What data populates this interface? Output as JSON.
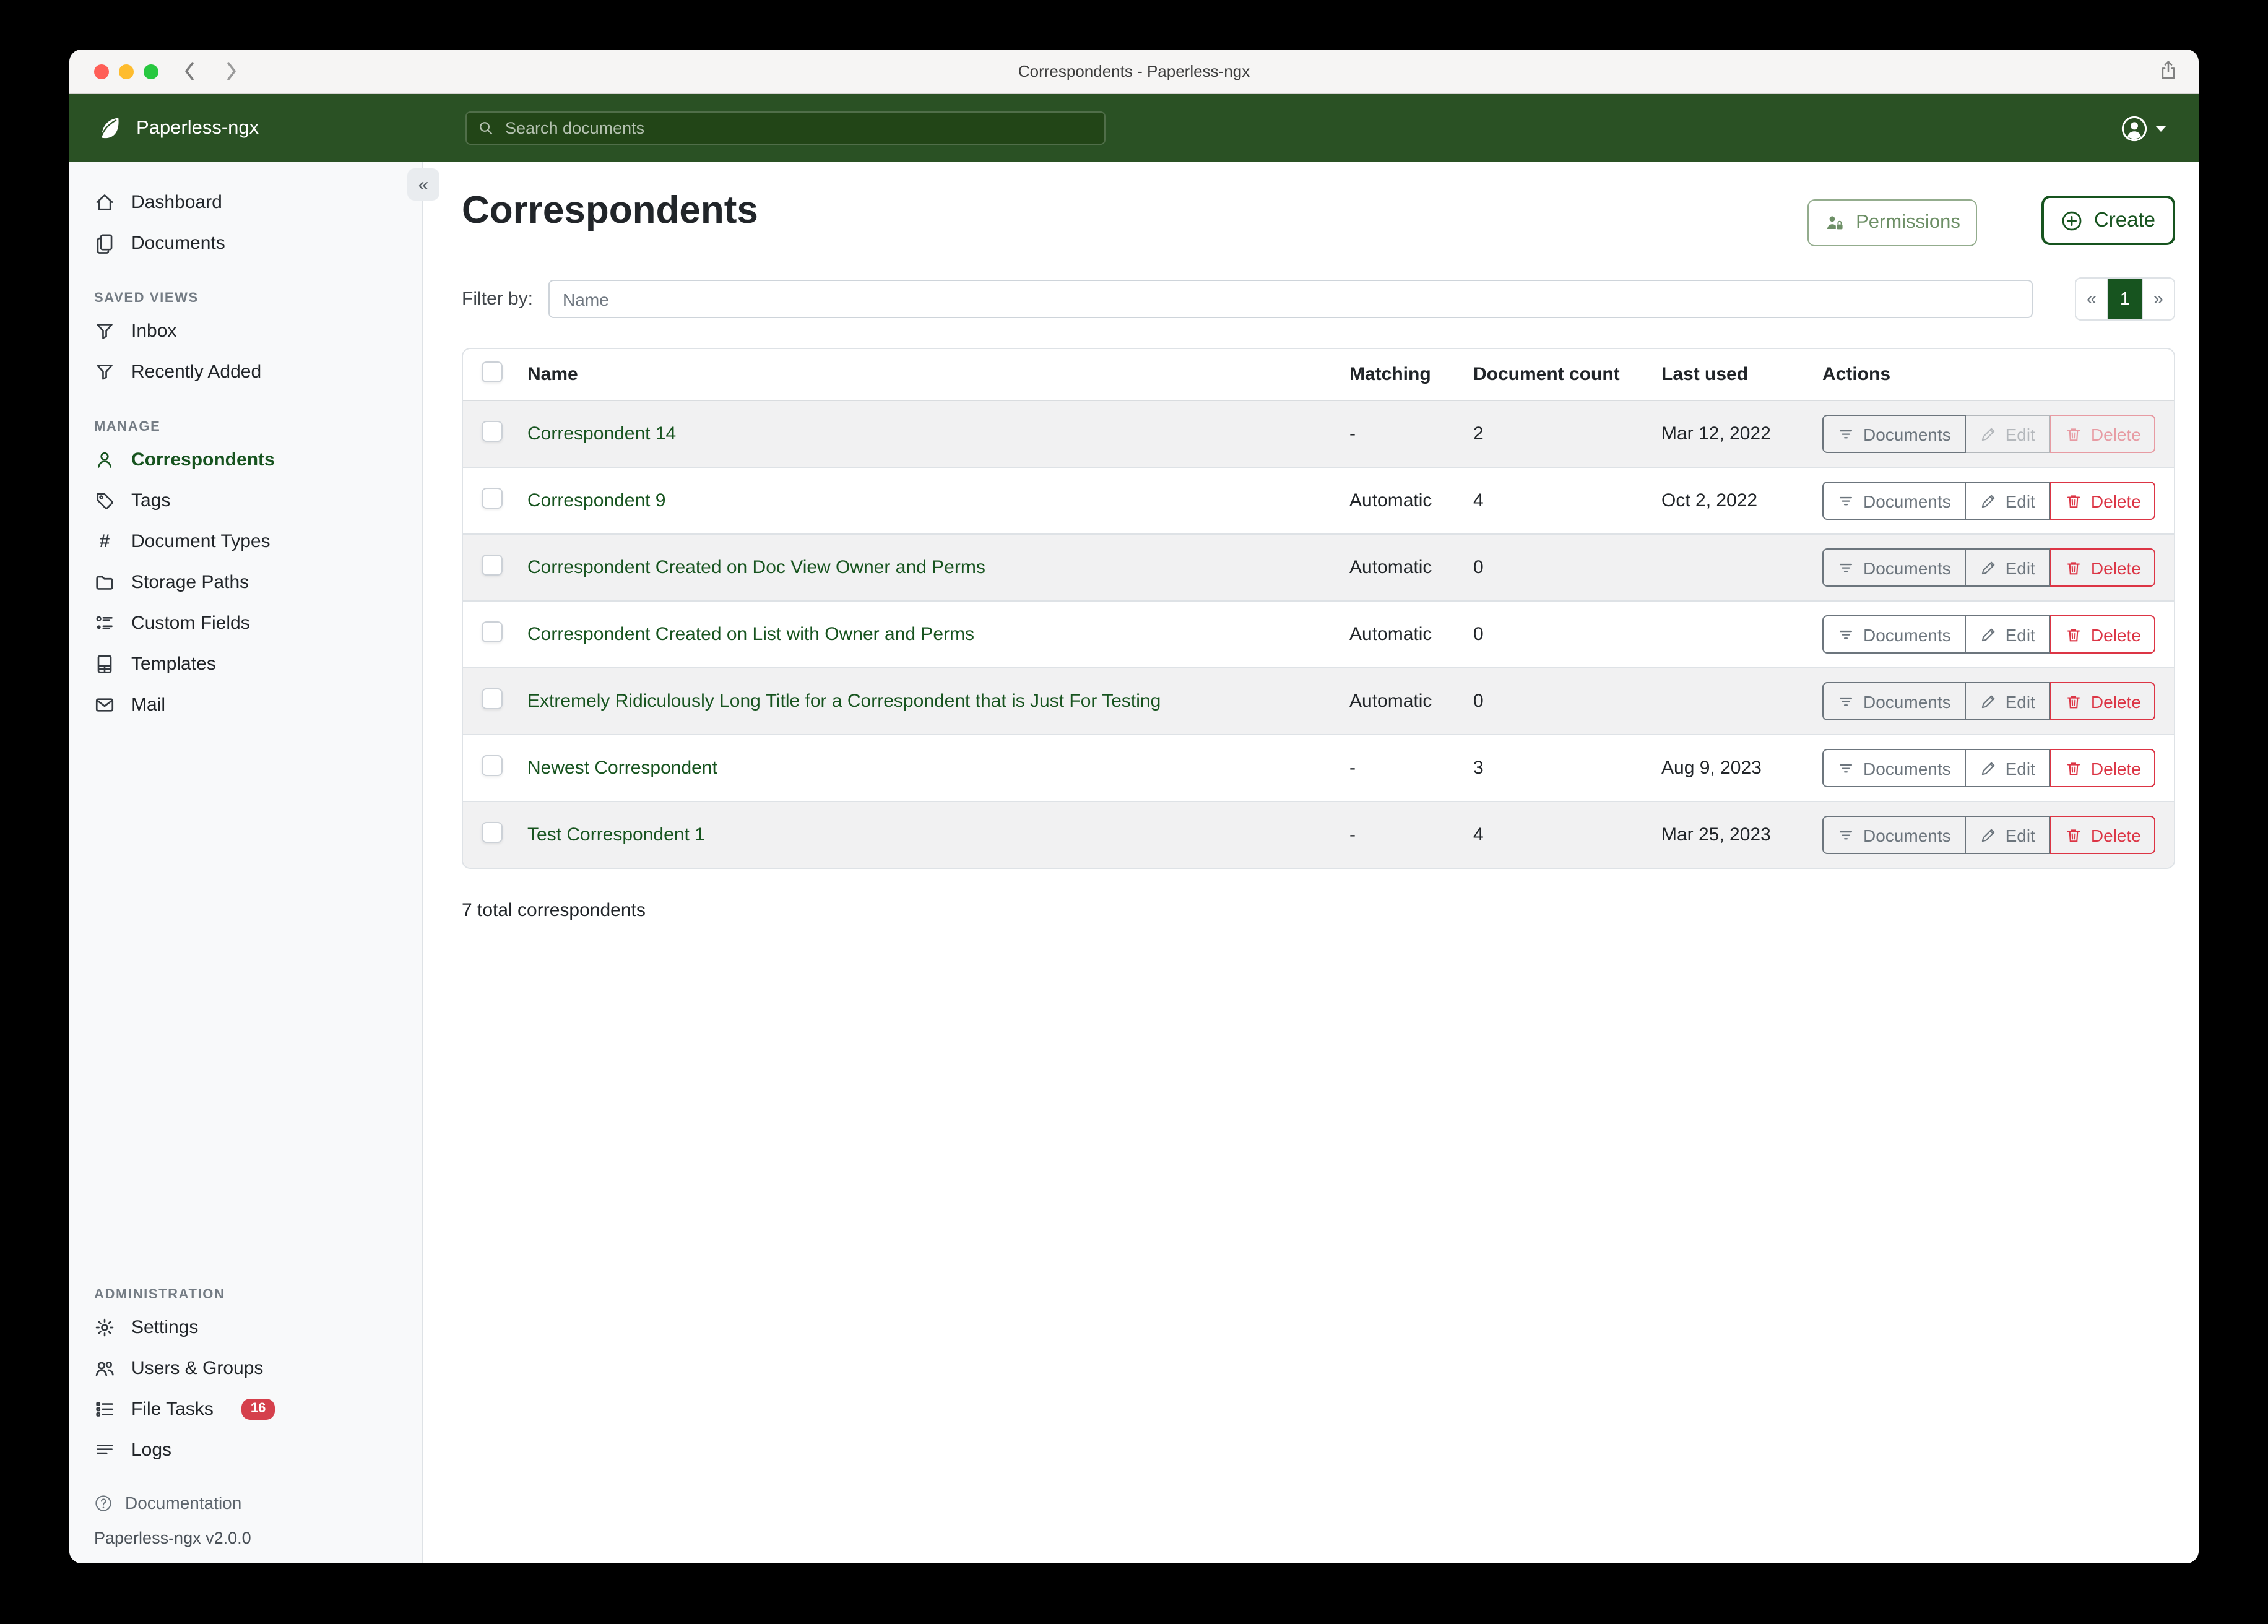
{
  "window": {
    "title": "Correspondents - Paperless-ngx"
  },
  "appbar": {
    "brand": "Paperless-ngx",
    "search_placeholder": "Search documents"
  },
  "sidebar": {
    "dashboard": "Dashboard",
    "documents": "Documents",
    "saved_views_title": "SAVED VIEWS",
    "inbox": "Inbox",
    "recently_added": "Recently Added",
    "manage_title": "MANAGE",
    "correspondents": "Correspondents",
    "tags": "Tags",
    "document_types": "Document Types",
    "storage_paths": "Storage Paths",
    "custom_fields": "Custom Fields",
    "templates": "Templates",
    "mail": "Mail",
    "administration_title": "ADMINISTRATION",
    "settings": "Settings",
    "users_groups": "Users & Groups",
    "file_tasks": "File Tasks",
    "file_tasks_badge": "16",
    "logs": "Logs",
    "documentation": "Documentation",
    "version": "Paperless-ngx v2.0.0"
  },
  "page": {
    "title": "Correspondents",
    "permissions_label": "Permissions",
    "create_label": "Create",
    "filter_label": "Filter by:",
    "filter_placeholder": "Name",
    "pagination": {
      "prev": "«",
      "page": "1",
      "next": "»"
    },
    "table": {
      "headers": [
        "Name",
        "Matching",
        "Document count",
        "Last used",
        "Actions"
      ],
      "actions": {
        "documents": "Documents",
        "edit": "Edit",
        "delete": "Delete"
      },
      "rows": [
        {
          "name": "Correspondent 14",
          "matching": "-",
          "count": "2",
          "last_used": "Mar 12, 2022",
          "edit_disabled": true,
          "delete_disabled": true
        },
        {
          "name": "Correspondent 9",
          "matching": "Automatic",
          "count": "4",
          "last_used": "Oct 2, 2022",
          "edit_disabled": false,
          "delete_disabled": false
        },
        {
          "name": "Correspondent Created on Doc View Owner and Perms",
          "matching": "Automatic",
          "count": "0",
          "last_used": "",
          "edit_disabled": false,
          "delete_disabled": false
        },
        {
          "name": "Correspondent Created on List with Owner and Perms",
          "matching": "Automatic",
          "count": "0",
          "last_used": "",
          "edit_disabled": false,
          "delete_disabled": false
        },
        {
          "name": "Extremely Ridiculously Long Title for a Correspondent that is Just For Testing",
          "matching": "Automatic",
          "count": "0",
          "last_used": "",
          "edit_disabled": false,
          "delete_disabled": false
        },
        {
          "name": "Newest Correspondent",
          "matching": "-",
          "count": "3",
          "last_used": "Aug 9, 2023",
          "edit_disabled": false,
          "delete_disabled": false
        },
        {
          "name": "Test Correspondent 1",
          "matching": "-",
          "count": "4",
          "last_used": "Mar 25, 2023",
          "edit_disabled": false,
          "delete_disabled": false
        }
      ],
      "footer": "7 total correspondents"
    }
  },
  "colors": {
    "navbar_green": "#2a5124",
    "primary_green": "#17541f",
    "danger_red": "#dc3545",
    "row_stripe": "#f1f1f2",
    "sidebar_bg": "#f8f9fa"
  }
}
